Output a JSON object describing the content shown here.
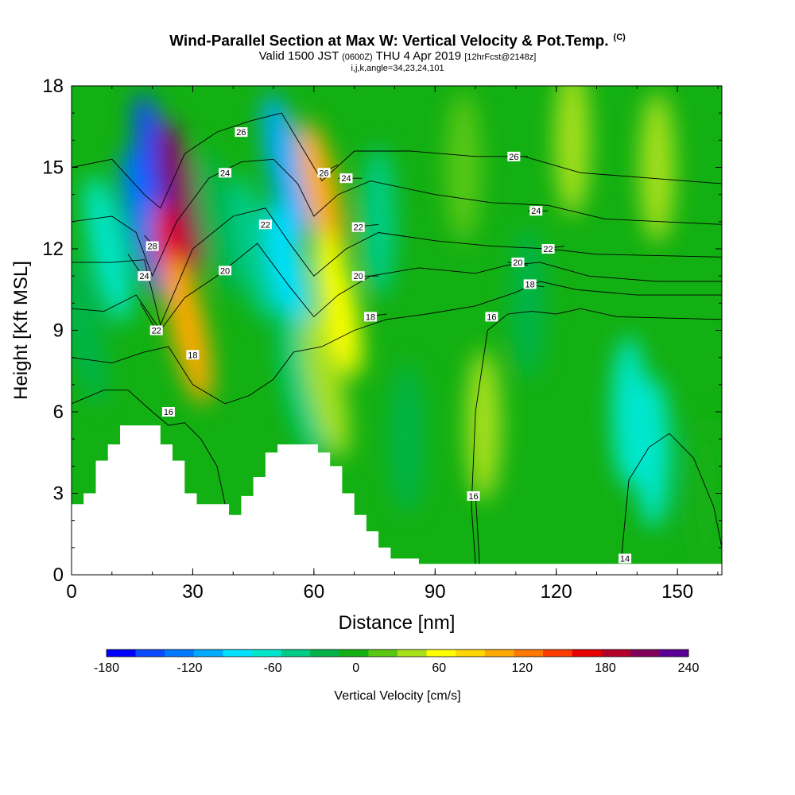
{
  "header": {
    "title": "Wind-Parallel Section at Max W: Vertical Velocity & Pot.Temp.",
    "copyright": "(C)",
    "valid_prefix": "Valid 1500 JST",
    "valid_utc": "(0600Z)",
    "valid_date": "THU 4 Apr 2019",
    "forecast": "[12hrFcst@2148z]",
    "indices": "i,j,k,angle=34,23,24,101"
  },
  "chart_data": {
    "type": "heatmap",
    "xlabel": "Distance [nm]",
    "ylabel": "Height [Kft MSL]",
    "xlim": [
      0,
      161
    ],
    "ylim": [
      0,
      18
    ],
    "x_ticks": [
      0,
      30,
      60,
      90,
      120,
      150
    ],
    "y_ticks": [
      0,
      3,
      6,
      9,
      12,
      15,
      18
    ],
    "grid": false,
    "colorbar": {
      "label": "Vertical Velocity [cm/s]",
      "min": -180,
      "max": 240,
      "tick_values": [
        -180,
        -120,
        -60,
        0,
        60,
        120,
        180,
        240
      ],
      "colors": [
        "#0000ff",
        "#0a4bff",
        "#0078ff",
        "#00aaff",
        "#00e0ff",
        "#00e6cc",
        "#00cc88",
        "#00b44a",
        "#13b013",
        "#5ac812",
        "#a8e01a",
        "#ffff00",
        "#ffd700",
        "#ffaa00",
        "#ff7800",
        "#ff3c00",
        "#e60000",
        "#b40028",
        "#82005a",
        "#5a0096"
      ]
    },
    "terrain": [
      [
        0,
        2.6
      ],
      [
        3,
        2.6
      ],
      [
        3,
        3.0
      ],
      [
        6,
        3.0
      ],
      [
        6,
        4.2
      ],
      [
        9,
        4.2
      ],
      [
        9,
        4.8
      ],
      [
        12,
        4.8
      ],
      [
        12,
        5.5
      ],
      [
        22,
        5.5
      ],
      [
        22,
        4.8
      ],
      [
        25,
        4.8
      ],
      [
        25,
        4.2
      ],
      [
        28,
        4.2
      ],
      [
        28,
        3.0
      ],
      [
        31,
        3.0
      ],
      [
        31,
        2.6
      ],
      [
        39,
        2.6
      ],
      [
        39,
        2.2
      ],
      [
        42,
        2.2
      ],
      [
        42,
        2.9
      ],
      [
        45,
        2.9
      ],
      [
        45,
        3.6
      ],
      [
        48,
        3.6
      ],
      [
        48,
        4.5
      ],
      [
        51,
        4.5
      ],
      [
        51,
        4.8
      ],
      [
        61,
        4.8
      ],
      [
        61,
        4.5
      ],
      [
        64,
        4.5
      ],
      [
        64,
        4.0
      ],
      [
        67,
        4.0
      ],
      [
        67,
        3.0
      ],
      [
        70,
        3.0
      ],
      [
        70,
        2.2
      ],
      [
        73,
        2.2
      ],
      [
        73,
        1.6
      ],
      [
        76,
        1.6
      ],
      [
        76,
        1.0
      ],
      [
        79,
        1.0
      ],
      [
        79,
        0.6
      ],
      [
        86,
        0.6
      ],
      [
        86,
        0.4
      ],
      [
        161,
        0.4
      ]
    ],
    "w_field": [
      {
        "x": 3,
        "y": 9,
        "value": -20
      },
      {
        "x": 9,
        "y": 12,
        "value": -55
      },
      {
        "x": 18,
        "y": 13,
        "value": -130
      },
      {
        "x": 21,
        "y": 15,
        "value": -150
      },
      {
        "x": 27,
        "y": 14,
        "value": 200
      },
      {
        "x": 26,
        "y": 11,
        "value": 170
      },
      {
        "x": 29,
        "y": 9,
        "value": 100
      },
      {
        "x": 36,
        "y": 13,
        "value": -30
      },
      {
        "x": 45,
        "y": 12,
        "value": -40
      },
      {
        "x": 53,
        "y": 15,
        "value": -110
      },
      {
        "x": 54,
        "y": 11,
        "value": -85
      },
      {
        "x": 57,
        "y": 7,
        "value": -50
      },
      {
        "x": 62,
        "y": 14,
        "value": 110
      },
      {
        "x": 66,
        "y": 10,
        "value": 70
      },
      {
        "x": 63,
        "y": 7,
        "value": 40
      },
      {
        "x": 76,
        "y": 13,
        "value": -40
      },
      {
        "x": 83,
        "y": 5,
        "value": -20
      },
      {
        "x": 102,
        "y": 5.5,
        "value": 40
      },
      {
        "x": 97,
        "y": 15,
        "value": 10
      },
      {
        "x": 113,
        "y": 10,
        "value": -30
      },
      {
        "x": 124,
        "y": 16,
        "value": 40
      },
      {
        "x": 138,
        "y": 6,
        "value": -55
      },
      {
        "x": 144,
        "y": 4.5,
        "value": -65
      },
      {
        "x": 145,
        "y": 15,
        "value": 50
      },
      {
        "x": 157,
        "y": 3,
        "value": 5
      }
    ],
    "theta_contours": [
      {
        "level": 14,
        "points": [
          [
            136,
            0.4
          ],
          [
            137,
            2.0
          ],
          [
            138,
            3.5
          ],
          [
            143,
            4.7
          ],
          [
            148,
            5.2
          ],
          [
            154,
            4.3
          ],
          [
            159,
            2.5
          ],
          [
            161,
            1.0
          ]
        ],
        "label": "14",
        "label_at": [
          137,
          0.6
        ]
      },
      {
        "level": 16,
        "points": [
          [
            0,
            6.3
          ],
          [
            8,
            6.8
          ],
          [
            14,
            6.8
          ],
          [
            20,
            6.0
          ],
          [
            24,
            5.5
          ],
          [
            28,
            5.6
          ],
          [
            32,
            5.0
          ],
          [
            36,
            4.0
          ],
          [
            38,
            2.6
          ]
        ],
        "label": "16",
        "label_at": [
          24,
          6.0
        ]
      },
      {
        "level": 16,
        "points": [
          [
            100,
            0.4
          ],
          [
            99,
            2.5
          ],
          [
            100,
            6.0
          ],
          [
            103,
            9.0
          ],
          [
            108,
            9.6
          ],
          [
            114,
            9.7
          ],
          [
            120,
            9.6
          ],
          [
            126,
            9.8
          ],
          [
            135,
            9.5
          ],
          [
            161,
            9.4
          ]
        ],
        "label": "16",
        "label_at": [
          104,
          9.5
        ]
      },
      {
        "level": 16,
        "points": [
          [
            101,
            0.4
          ],
          [
            100,
            3.0
          ]
        ],
        "label": "16",
        "label_at": [
          99.5,
          2.9
        ]
      },
      {
        "level": 18,
        "points": [
          [
            0,
            8.0
          ],
          [
            10,
            7.8
          ],
          [
            18,
            8.2
          ],
          [
            24,
            8.4
          ],
          [
            30,
            7.0
          ],
          [
            38,
            6.3
          ],
          [
            44,
            6.6
          ],
          [
            50,
            7.2
          ],
          [
            55,
            8.2
          ],
          [
            62,
            8.4
          ],
          [
            70,
            9.0
          ],
          [
            78,
            9.4
          ],
          [
            88,
            9.6
          ],
          [
            100,
            9.9
          ],
          [
            110,
            10.4
          ],
          [
            116,
            10.8
          ],
          [
            125,
            10.5
          ],
          [
            140,
            10.3
          ],
          [
            161,
            10.3
          ]
        ],
        "label": "18",
        "label_at": [
          30,
          8.1
        ]
      },
      {
        "level": 18,
        "points": [
          [
            73,
            9.5
          ],
          [
            78,
            9.6
          ]
        ],
        "label": "18",
        "label_at": [
          74,
          9.5
        ]
      },
      {
        "level": 20,
        "points": [
          [
            0,
            9.8
          ],
          [
            8,
            9.7
          ],
          [
            16,
            10.3
          ],
          [
            22,
            9.0
          ],
          [
            28,
            10.2
          ],
          [
            36,
            11.0
          ],
          [
            46,
            12.2
          ],
          [
            54,
            10.6
          ],
          [
            60,
            9.5
          ],
          [
            66,
            10.3
          ],
          [
            74,
            11.0
          ],
          [
            86,
            11.3
          ],
          [
            100,
            11.1
          ],
          [
            108,
            11.4
          ],
          [
            116,
            11.5
          ],
          [
            128,
            11.0
          ],
          [
            145,
            10.8
          ],
          [
            161,
            10.8
          ]
        ],
        "label": "20",
        "label_at": [
          38,
          11.2
        ]
      },
      {
        "level": 22,
        "points": [
          [
            0,
            11.5
          ],
          [
            10,
            11.5
          ],
          [
            18,
            11.6
          ],
          [
            22,
            9.2
          ],
          [
            30,
            12.0
          ],
          [
            40,
            13.2
          ],
          [
            48,
            13.5
          ],
          [
            54,
            12.2
          ],
          [
            60,
            11.0
          ],
          [
            68,
            12.0
          ],
          [
            76,
            12.6
          ],
          [
            90,
            12.3
          ],
          [
            104,
            12.1
          ],
          [
            118,
            12.0
          ],
          [
            130,
            11.8
          ],
          [
            161,
            11.7
          ]
        ],
        "label": "22",
        "label_at": [
          48,
          12.9
        ]
      },
      {
        "level": 22,
        "points": [
          [
            70,
            12.8
          ],
          [
            76,
            12.9
          ]
        ],
        "label": "22",
        "label_at": [
          71,
          12.8
        ]
      },
      {
        "level": 22,
        "points": [
          [
            117,
            12.0
          ],
          [
            122,
            12.1
          ]
        ],
        "label": "22",
        "label_at": [
          118,
          12.0
        ]
      },
      {
        "level": 20,
        "points": [
          [
            70,
            11.0
          ],
          [
            76,
            11.0
          ]
        ],
        "label": "20",
        "label_at": [
          71,
          11.0
        ]
      },
      {
        "level": 20,
        "points": [
          [
            108,
            11.5
          ],
          [
            113,
            11.4
          ]
        ],
        "label": "20",
        "label_at": [
          110.5,
          11.5
        ]
      },
      {
        "level": 18,
        "points": [
          [
            112,
            10.7
          ],
          [
            117,
            10.6
          ]
        ],
        "label": "18",
        "label_at": [
          113.5,
          10.7
        ]
      },
      {
        "level": 22,
        "points": [
          [
            17,
            10.0
          ],
          [
            21,
            9.0
          ]
        ],
        "label": "22",
        "label_at": [
          21,
          9.0
        ]
      },
      {
        "level": 24,
        "points": [
          [
            0,
            13.0
          ],
          [
            10,
            13.2
          ],
          [
            16,
            12.6
          ],
          [
            20,
            11.0
          ],
          [
            26,
            13.0
          ],
          [
            34,
            14.6
          ],
          [
            42,
            15.2
          ],
          [
            50,
            15.3
          ],
          [
            56,
            14.4
          ],
          [
            60,
            13.2
          ],
          [
            66,
            14.0
          ],
          [
            74,
            14.5
          ],
          [
            90,
            14.0
          ],
          [
            104,
            13.7
          ],
          [
            118,
            13.6
          ],
          [
            132,
            13.1
          ],
          [
            161,
            12.9
          ]
        ],
        "label": "24",
        "label_at": [
          38,
          14.8
        ]
      },
      {
        "level": 24,
        "points": [
          [
            66,
            14.6
          ],
          [
            72,
            14.6
          ]
        ],
        "label": "24",
        "label_at": [
          68,
          14.6
        ]
      },
      {
        "level": 24,
        "points": [
          [
            113,
            13.4
          ],
          [
            118,
            13.4
          ]
        ],
        "label": "24",
        "label_at": [
          115,
          13.4
        ]
      },
      {
        "level": 24,
        "points": [
          [
            14,
            11.8
          ],
          [
            18,
            10.9
          ]
        ],
        "label": "24",
        "label_at": [
          18,
          11.0
        ]
      },
      {
        "level": 26,
        "points": [
          [
            0,
            15.0
          ],
          [
            10,
            15.3
          ],
          [
            18,
            14.0
          ],
          [
            22,
            13.5
          ],
          [
            28,
            15.5
          ],
          [
            36,
            16.3
          ],
          [
            44,
            16.7
          ],
          [
            52,
            17.0
          ],
          [
            58,
            15.5
          ],
          [
            62,
            14.5
          ],
          [
            70,
            15.6
          ],
          [
            84,
            15.6
          ],
          [
            100,
            15.4
          ],
          [
            112,
            15.4
          ],
          [
            126,
            14.8
          ],
          [
            161,
            14.4
          ]
        ],
        "label": "26",
        "label_at": [
          42,
          16.3
        ]
      },
      {
        "level": 26,
        "points": [
          [
            62,
            14.8
          ],
          [
            66,
            15.1
          ]
        ],
        "label": "26",
        "label_at": [
          62.5,
          14.8
        ]
      },
      {
        "level": 26,
        "points": [
          [
            108,
            15.4
          ],
          [
            113,
            15.4
          ]
        ],
        "label": "26",
        "label_at": [
          109.5,
          15.4
        ]
      },
      {
        "level": 28,
        "points": [
          [
            18,
            12.5
          ],
          [
            21,
            12.0
          ]
        ],
        "label": "28",
        "label_at": [
          20,
          12.1
        ]
      }
    ]
  }
}
